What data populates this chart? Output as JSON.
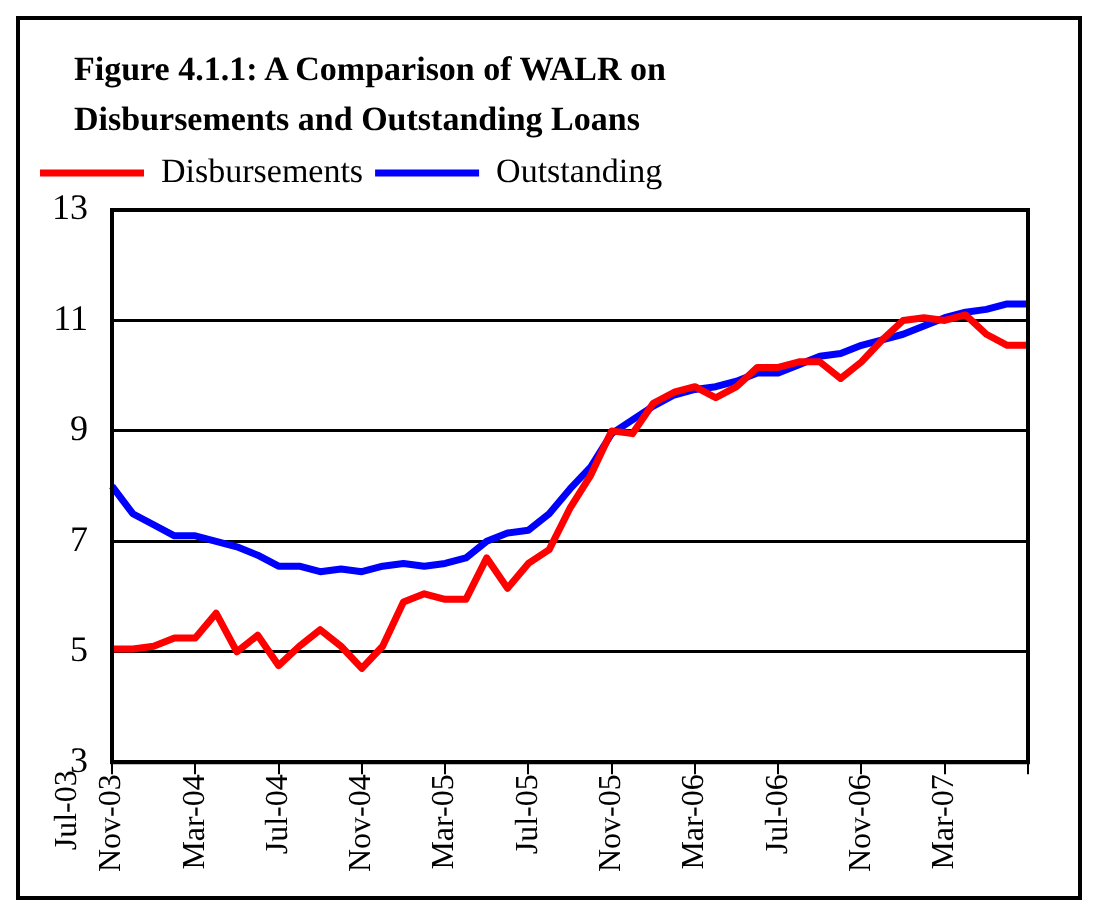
{
  "chart_data": {
    "type": "line",
    "title": "Figure 4.1.1: A Comparison of WALR on Disbursements and Outstanding Loans",
    "categories": [
      "Nov-03",
      null,
      null,
      null,
      "Mar-04",
      null,
      null,
      null,
      "Jul-04",
      null,
      null,
      null,
      "Nov-04",
      null,
      null,
      null,
      "Mar-05",
      null,
      null,
      null,
      "Jul-05",
      null,
      null,
      null,
      "Nov-05",
      null,
      null,
      null,
      "Mar-06",
      null,
      null,
      null,
      "Jul-06",
      null,
      null,
      null,
      "Nov-06",
      null,
      null,
      null,
      "Mar-07",
      null,
      null,
      null,
      null
    ],
    "series": [
      {
        "name": "Disbursements",
        "color": "#ff0000",
        "values": [
          5.05,
          5.05,
          5.1,
          5.25,
          5.25,
          5.7,
          5.0,
          5.3,
          4.75,
          5.1,
          5.4,
          5.1,
          4.7,
          5.1,
          5.9,
          6.05,
          5.95,
          5.95,
          6.7,
          6.15,
          6.6,
          6.85,
          7.6,
          8.2,
          9.0,
          8.95,
          9.5,
          9.7,
          9.8,
          9.6,
          9.8,
          10.15,
          10.15,
          10.25,
          10.25,
          9.95,
          10.25,
          10.65,
          11.0,
          11.05,
          11.0,
          11.1,
          10.75,
          10.55,
          10.55
        ]
      },
      {
        "name": "Outstanding",
        "color": "#0000ff",
        "values": [
          8.0,
          7.5,
          7.3,
          7.1,
          7.1,
          7.0,
          6.9,
          6.75,
          6.55,
          6.55,
          6.45,
          6.5,
          6.45,
          6.55,
          6.6,
          6.55,
          6.6,
          6.7,
          7.0,
          7.15,
          7.2,
          7.5,
          7.95,
          8.35,
          8.95,
          9.2,
          9.45,
          9.65,
          9.75,
          9.8,
          9.9,
          10.05,
          10.05,
          10.2,
          10.35,
          10.4,
          10.55,
          10.65,
          10.75,
          10.9,
          11.05,
          11.15,
          11.2,
          11.3,
          11.3
        ]
      }
    ],
    "ylim": [
      3,
      13
    ],
    "yticks": [
      3,
      5,
      7,
      9,
      11,
      13
    ],
    "grid": "y",
    "legend": "top left",
    "marker": "none",
    "line_style": "solid",
    "annotations": [
      "Jul-03"
    ]
  }
}
